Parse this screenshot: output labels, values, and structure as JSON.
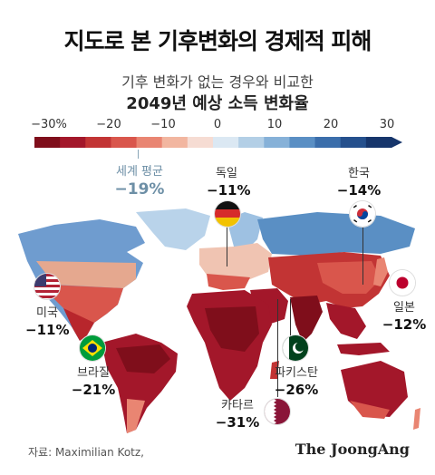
{
  "title": "지도로 본 기후변화의 경제적 피해",
  "subtitle_line1": "기후 변화가 없는 경우와 비교한",
  "subtitle_line2": "2049년 예상 소득 변화율",
  "colorbar": {
    "ticks": [
      "−30%",
      "−20",
      "−10",
      "0",
      "10",
      "20",
      "30"
    ],
    "min": -30,
    "max": 30,
    "colors": [
      "#7f0e1b",
      "#a3172a",
      "#c23434",
      "#d9564c",
      "#e98572",
      "#f2b6a0",
      "#f6dcd3",
      "#dbe8f3",
      "#b3cfe6",
      "#86b1d8",
      "#5a8fc4",
      "#3b6eab",
      "#25508d",
      "#16356b"
    ]
  },
  "world_average": {
    "label": "세계 평균",
    "value": "−19%",
    "value_num": -19
  },
  "countries": [
    {
      "name": "독일",
      "value": "−11%",
      "value_num": -11,
      "flag": "germany-flag"
    },
    {
      "name": "한국",
      "value": "−14%",
      "value_num": -14,
      "flag": "south-korea-flag"
    },
    {
      "name": "미국",
      "value": "−11%",
      "value_num": -11,
      "flag": "usa-flag"
    },
    {
      "name": "일본",
      "value": "−12%",
      "value_num": -12,
      "flag": "japan-flag"
    },
    {
      "name": "브라질",
      "value": "−21%",
      "value_num": -21,
      "flag": "brazil-flag"
    },
    {
      "name": "파키스탄",
      "value": "−26%",
      "value_num": -26,
      "flag": "pakistan-flag"
    },
    {
      "name": "카타르",
      "value": "−31%",
      "value_num": -31,
      "flag": "qatar-flag"
    }
  ],
  "source": "자료: Maximilian Kotz,",
  "brand": "The JoongAng"
}
